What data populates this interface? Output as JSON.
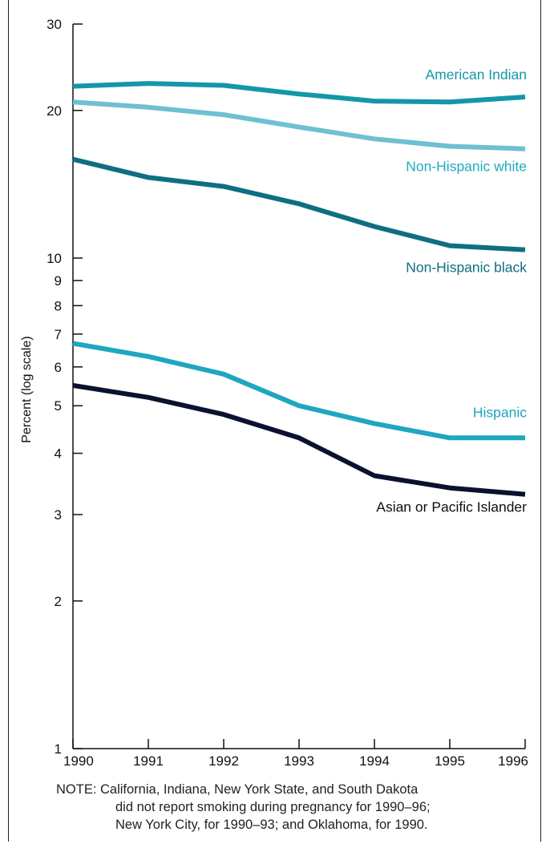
{
  "chart_data": {
    "type": "line",
    "title": "",
    "xlabel": "",
    "ylabel": "Percent (log scale)",
    "yscale": "log",
    "ylim": [
      1,
      30
    ],
    "yticks": [
      1,
      2,
      3,
      4,
      5,
      6,
      7,
      8,
      9,
      10,
      20,
      30
    ],
    "x": [
      1990,
      1991,
      1992,
      1993,
      1994,
      1995,
      1996
    ],
    "grid": false,
    "legend": "inline labels at right",
    "series": [
      {
        "name": "American Indian",
        "color": "#1397a8",
        "label_color": "#1397a8",
        "values": [
          22.4,
          22.7,
          22.5,
          21.6,
          20.9,
          20.8,
          21.3
        ]
      },
      {
        "name": "Non-Hispanic white",
        "color": "#6ec0d2",
        "label_color": "#22a9c0",
        "values": [
          20.8,
          20.3,
          19.6,
          18.5,
          17.5,
          16.9,
          16.7
        ]
      },
      {
        "name": "Non-Hispanic black",
        "color": "#0e6f80",
        "label_color": "#0e6f80",
        "values": [
          15.9,
          14.6,
          14.0,
          12.9,
          11.6,
          10.6,
          10.4
        ]
      },
      {
        "name": "Hispanic",
        "color": "#1fa6c0",
        "label_color": "#1fa6c0",
        "values": [
          6.7,
          6.3,
          5.8,
          5.0,
          4.6,
          4.3,
          4.3
        ]
      },
      {
        "name": "Asian or Pacific Islander",
        "color": "#0c1130",
        "label_color": "#111111",
        "values": [
          5.5,
          5.2,
          4.8,
          4.3,
          3.6,
          3.4,
          3.3
        ]
      }
    ]
  },
  "note": {
    "line1": "NOTE: California, Indiana, New York State, and South Dakota",
    "line2": "did not report smoking during pregnancy for 1990–96;",
    "line3": "New York City, for 1990–93; and Oklahoma, for 1990."
  }
}
